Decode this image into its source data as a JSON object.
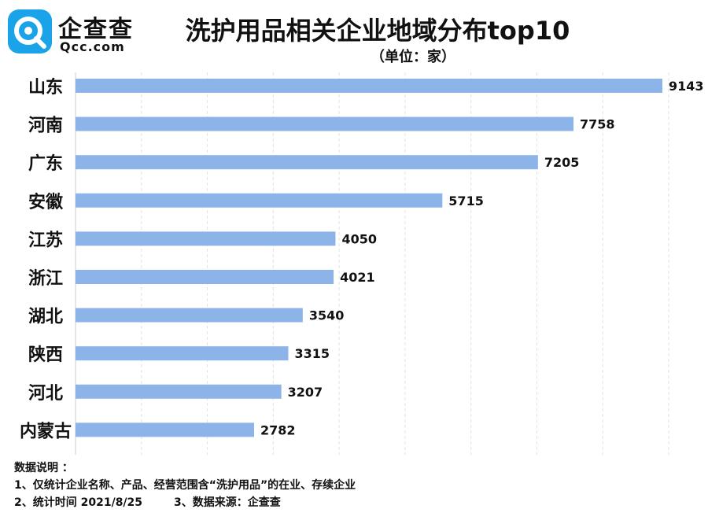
{
  "logo": {
    "name": "企查查",
    "domain": "Qcc.com",
    "color": "#1aa3e8"
  },
  "header": {
    "title": "洗护用品相关企业地域分布top10",
    "subtitle": "（单位：家）"
  },
  "notes": {
    "heading": "数据说明 ：",
    "line1": "1、仅统计企业名称、产品、经营范围含“洗护用品”的在业、存续企业",
    "line2a": "2、统计时间 2021/8/25",
    "line2b": "3、数据来源：企查查"
  },
  "chart_data": {
    "type": "bar",
    "orientation": "horizontal",
    "categories": [
      "山东",
      "河南",
      "广东",
      "安徽",
      "江苏",
      "浙江",
      "湖北",
      "陕西",
      "河北",
      "内蒙古"
    ],
    "values": [
      9143,
      7758,
      7205,
      5715,
      4050,
      4021,
      3540,
      3315,
      3207,
      2782
    ],
    "title": "洗护用品相关企业地域分布top10",
    "subtitle": "（单位：家）",
    "xlim": [
      0,
      9143
    ],
    "bar_color": "#8db4e8",
    "grid": true,
    "legend": "none"
  }
}
